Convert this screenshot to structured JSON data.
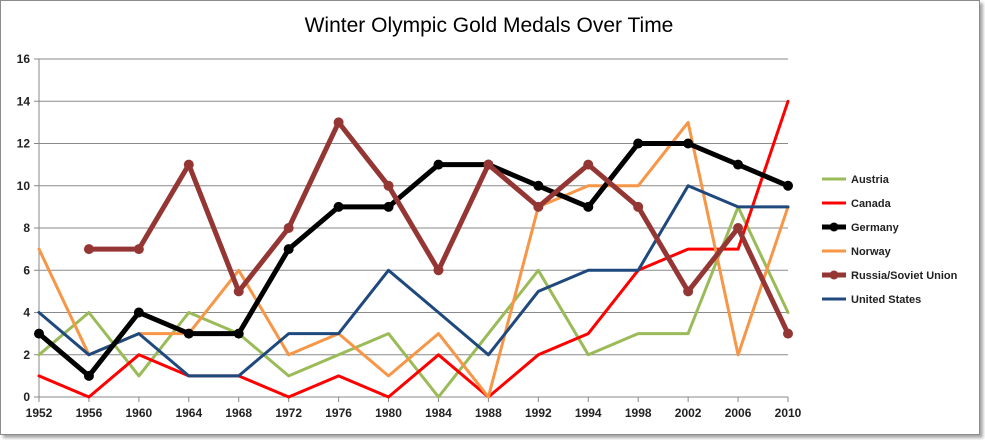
{
  "chart_data": {
    "type": "line",
    "title": "Winter Olympic Gold Medals Over Time",
    "xlabel": "",
    "ylabel": "",
    "categories": [
      "1952",
      "1956",
      "1960",
      "1964",
      "1968",
      "1972",
      "1976",
      "1980",
      "1984",
      "1988",
      "1992",
      "1994",
      "1998",
      "2002",
      "2006",
      "2010"
    ],
    "ylim": [
      0,
      16
    ],
    "yticks": [
      0,
      2,
      4,
      6,
      8,
      10,
      12,
      14,
      16
    ],
    "grid": true,
    "legend_position": "right",
    "series": [
      {
        "name": "Austria",
        "color": "#9bbb59",
        "values": [
          2,
          4,
          1,
          4,
          3,
          1,
          2,
          3,
          0,
          3,
          6,
          2,
          3,
          3,
          9,
          4
        ]
      },
      {
        "name": "Canada",
        "color": "#ff0000",
        "values": [
          1,
          0,
          2,
          1,
          1,
          0,
          1,
          0,
          2,
          0,
          2,
          3,
          6,
          7,
          7,
          14
        ]
      },
      {
        "name": "Germany",
        "color": "#000000",
        "values": [
          3,
          1,
          4,
          3,
          3,
          7,
          9,
          9,
          11,
          11,
          10,
          9,
          12,
          12,
          11,
          10
        ]
      },
      {
        "name": "Norway",
        "color": "#f79646",
        "values": [
          7,
          2,
          3,
          3,
          6,
          2,
          3,
          1,
          3,
          0,
          9,
          10,
          10,
          13,
          2,
          9
        ]
      },
      {
        "name": "Russia/Soviet Union",
        "color": "#943634",
        "values": [
          null,
          7,
          7,
          11,
          5,
          8,
          13,
          10,
          6,
          11,
          9,
          11,
          9,
          5,
          8,
          3
        ]
      },
      {
        "name": "United States",
        "color": "#1f497d",
        "values": [
          4,
          2,
          3,
          1,
          1,
          3,
          3,
          6,
          4,
          2,
          5,
          6,
          6,
          10,
          9,
          9
        ]
      }
    ]
  }
}
